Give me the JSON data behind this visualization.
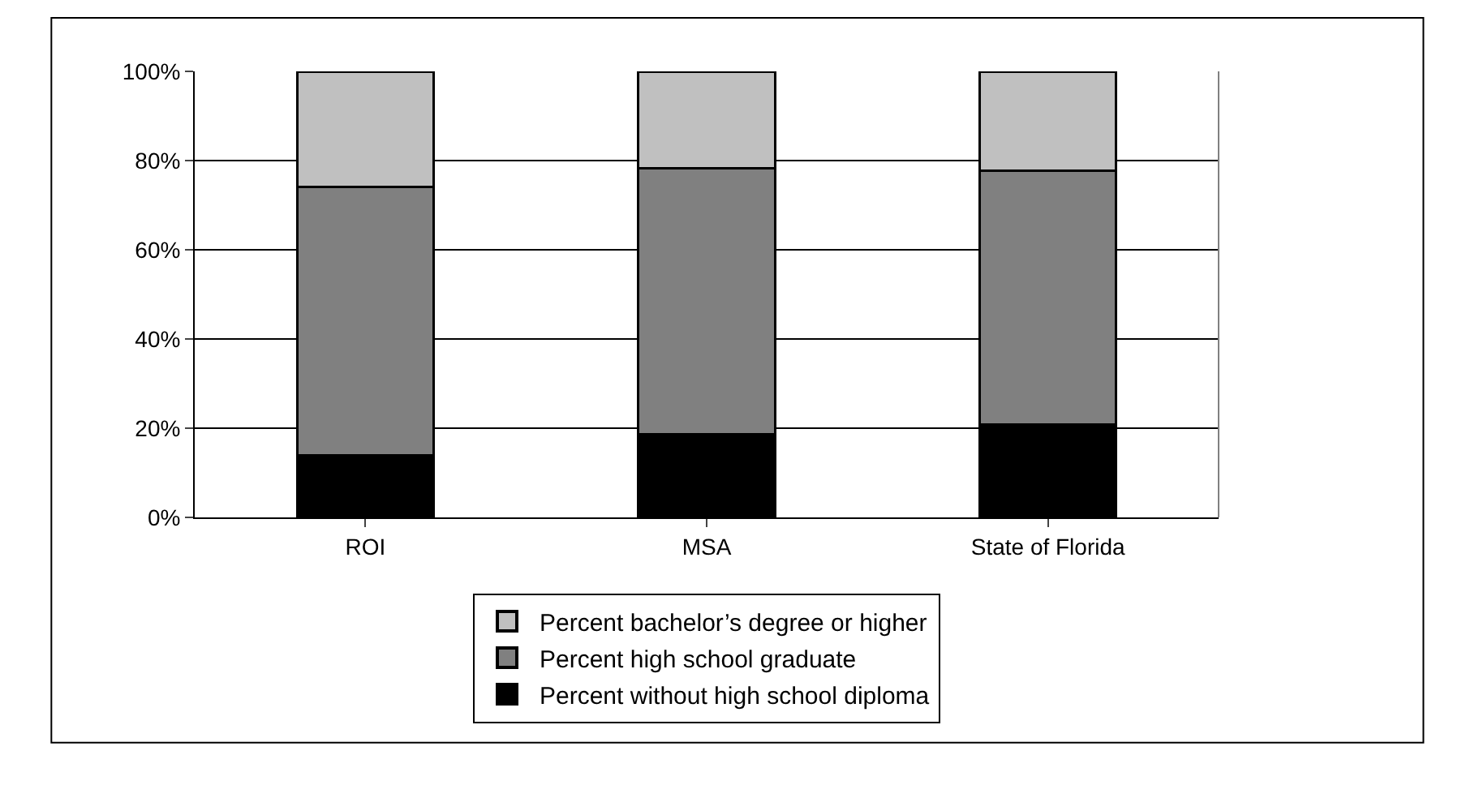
{
  "chart_data": {
    "type": "bar",
    "stacked": true,
    "categories": [
      "ROI",
      "MSA",
      "State of Florida"
    ],
    "series": [
      {
        "name": "Percent without high school diploma",
        "color": "#000000",
        "values": [
          14.0,
          18.7,
          20.9
        ]
      },
      {
        "name": "Percent high school graduate",
        "color": "#808080",
        "values": [
          60.1,
          59.5,
          56.8
        ]
      },
      {
        "name": "Percent bachelor’s degree or higher",
        "color": "#c0c0c0",
        "values": [
          25.9,
          21.8,
          22.3
        ]
      }
    ],
    "ylim": [
      0,
      100
    ],
    "yticks": [
      {
        "value": 0,
        "label": "0%"
      },
      {
        "value": 20,
        "label": "20%"
      },
      {
        "value": 40,
        "label": "40%"
      },
      {
        "value": 60,
        "label": "60%"
      },
      {
        "value": 80,
        "label": "80%"
      },
      {
        "value": 100,
        "label": "100%"
      }
    ],
    "grid": "y",
    "legend": "bottom"
  }
}
